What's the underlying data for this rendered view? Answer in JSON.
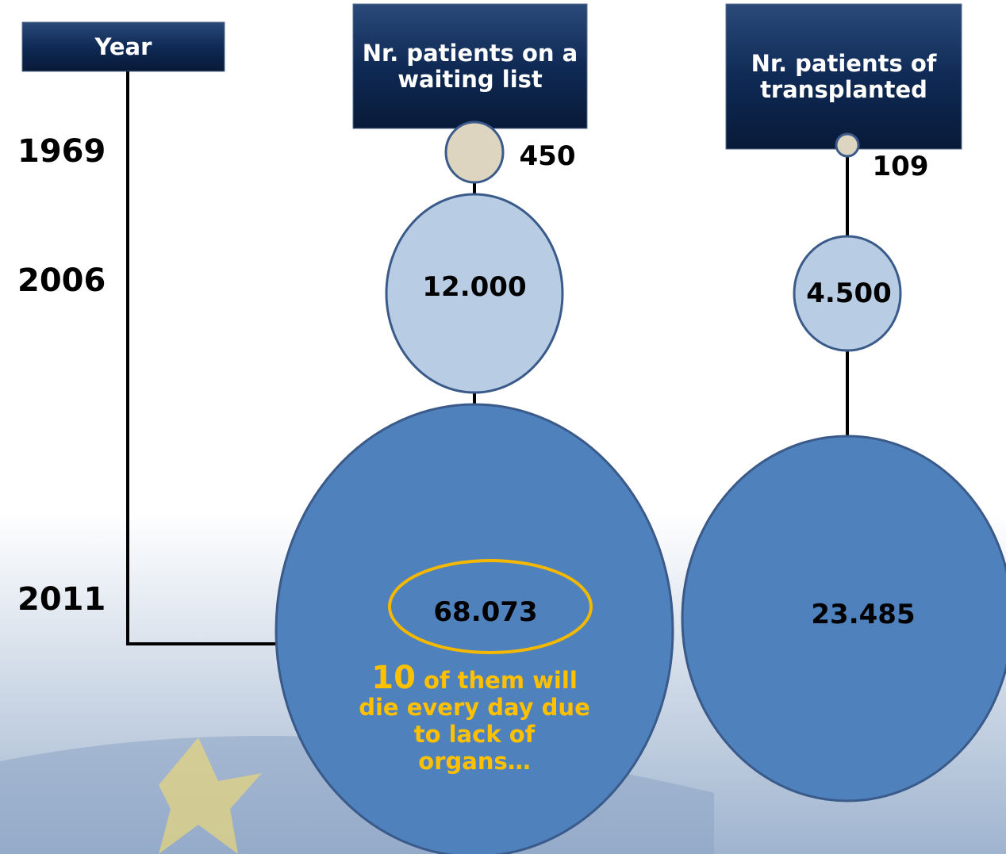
{
  "headers": {
    "year": "Year",
    "waiting": "Nr. patients on a waiting list",
    "transplanted": "Nr. patients of transplanted"
  },
  "years": [
    "1969",
    "2006",
    "2011"
  ],
  "waiting": [
    "450",
    "12.000",
    "68.073"
  ],
  "transplanted": [
    "109",
    "4.500",
    "23.485"
  ],
  "note": {
    "highlight": "10",
    "text": "of them will die every day due to lack of organs…"
  }
}
